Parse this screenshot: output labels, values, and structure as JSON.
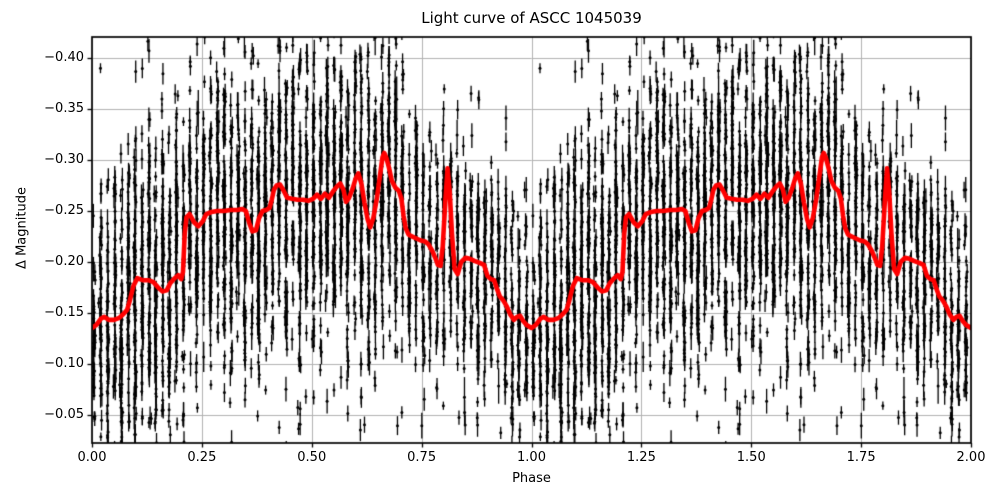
{
  "chart_data": {
    "type": "scatter",
    "title": "Light curve of ASCC 1045039",
    "xlabel": "Phase",
    "ylabel": "Δ Magnitude",
    "x_range": [
      0.0,
      2.0
    ],
    "y_top_value": -0.421,
    "y_bottom_value": -0.022,
    "y_axis_inverted": true,
    "grid": true,
    "legend": "none",
    "x_ticks": [
      0.0,
      0.25,
      0.5,
      0.75,
      1.0,
      1.25,
      1.5,
      1.75,
      2.0
    ],
    "x_tick_labels": [
      "0.00",
      "0.25",
      "0.50",
      "0.75",
      "1.00",
      "1.25",
      "1.50",
      "1.75",
      "2.00"
    ],
    "y_ticks": [
      -0.4,
      -0.35,
      -0.3,
      -0.25,
      -0.2,
      -0.15,
      -0.1,
      -0.05
    ],
    "y_tick_labels": [
      "−0.40",
      "−0.35",
      "−0.30",
      "−0.25",
      "−0.20",
      "−0.15",
      "−0.10",
      "−0.05"
    ],
    "colors": {
      "scatter": "#000000",
      "trend_line": "#ff0000",
      "grid": "#b2b2b2",
      "spine": "#000000",
      "background": "#ffffff",
      "text": "#000000"
    },
    "trend_line": {
      "description": "thick red smoothed phase-folded light curve; cycle 0-1 repeats identically over 1-2",
      "duplicated_over_second_cycle": true,
      "points": [
        [
          0.0,
          -0.135
        ],
        [
          0.01,
          -0.138
        ],
        [
          0.02,
          -0.144
        ],
        [
          0.028,
          -0.146
        ],
        [
          0.038,
          -0.143
        ],
        [
          0.05,
          -0.143
        ],
        [
          0.062,
          -0.145
        ],
        [
          0.072,
          -0.149
        ],
        [
          0.08,
          -0.153
        ],
        [
          0.086,
          -0.162
        ],
        [
          0.094,
          -0.176
        ],
        [
          0.103,
          -0.184
        ],
        [
          0.115,
          -0.182
        ],
        [
          0.128,
          -0.182
        ],
        [
          0.14,
          -0.18
        ],
        [
          0.15,
          -0.175
        ],
        [
          0.16,
          -0.171
        ],
        [
          0.17,
          -0.172
        ],
        [
          0.178,
          -0.179
        ],
        [
          0.186,
          -0.183
        ],
        [
          0.196,
          -0.187
        ],
        [
          0.203,
          -0.183
        ],
        [
          0.207,
          -0.19
        ],
        [
          0.211,
          -0.228
        ],
        [
          0.215,
          -0.244
        ],
        [
          0.222,
          -0.247
        ],
        [
          0.232,
          -0.239
        ],
        [
          0.242,
          -0.235
        ],
        [
          0.252,
          -0.24
        ],
        [
          0.26,
          -0.247
        ],
        [
          0.272,
          -0.249
        ],
        [
          0.285,
          -0.25
        ],
        [
          0.3,
          -0.25
        ],
        [
          0.315,
          -0.251
        ],
        [
          0.33,
          -0.251
        ],
        [
          0.342,
          -0.252
        ],
        [
          0.35,
          -0.25
        ],
        [
          0.358,
          -0.238
        ],
        [
          0.365,
          -0.23
        ],
        [
          0.373,
          -0.231
        ],
        [
          0.38,
          -0.243
        ],
        [
          0.388,
          -0.25
        ],
        [
          0.396,
          -0.251
        ],
        [
          0.404,
          -0.253
        ],
        [
          0.409,
          -0.261
        ],
        [
          0.414,
          -0.271
        ],
        [
          0.42,
          -0.275
        ],
        [
          0.428,
          -0.276
        ],
        [
          0.436,
          -0.27
        ],
        [
          0.444,
          -0.263
        ],
        [
          0.455,
          -0.262
        ],
        [
          0.468,
          -0.261
        ],
        [
          0.48,
          -0.261
        ],
        [
          0.492,
          -0.26
        ],
        [
          0.503,
          -0.262
        ],
        [
          0.512,
          -0.266
        ],
        [
          0.521,
          -0.262
        ],
        [
          0.53,
          -0.267
        ],
        [
          0.539,
          -0.263
        ],
        [
          0.548,
          -0.269
        ],
        [
          0.557,
          -0.274
        ],
        [
          0.565,
          -0.277
        ],
        [
          0.572,
          -0.271
        ],
        [
          0.578,
          -0.259
        ],
        [
          0.585,
          -0.263
        ],
        [
          0.593,
          -0.272
        ],
        [
          0.6,
          -0.282
        ],
        [
          0.606,
          -0.287
        ],
        [
          0.613,
          -0.277
        ],
        [
          0.62,
          -0.258
        ],
        [
          0.627,
          -0.242
        ],
        [
          0.633,
          -0.234
        ],
        [
          0.64,
          -0.243
        ],
        [
          0.648,
          -0.262
        ],
        [
          0.655,
          -0.284
        ],
        [
          0.661,
          -0.303
        ],
        [
          0.665,
          -0.307
        ],
        [
          0.67,
          -0.302
        ],
        [
          0.676,
          -0.292
        ],
        [
          0.682,
          -0.28
        ],
        [
          0.69,
          -0.273
        ],
        [
          0.698,
          -0.27
        ],
        [
          0.704,
          -0.262
        ],
        [
          0.709,
          -0.245
        ],
        [
          0.714,
          -0.233
        ],
        [
          0.72,
          -0.227
        ],
        [
          0.728,
          -0.225
        ],
        [
          0.738,
          -0.223
        ],
        [
          0.748,
          -0.221
        ],
        [
          0.758,
          -0.22
        ],
        [
          0.766,
          -0.217
        ],
        [
          0.774,
          -0.211
        ],
        [
          0.781,
          -0.204
        ],
        [
          0.787,
          -0.197
        ],
        [
          0.793,
          -0.196
        ],
        [
          0.798,
          -0.215
        ],
        [
          0.804,
          -0.26
        ],
        [
          0.809,
          -0.292
        ],
        [
          0.814,
          -0.268
        ],
        [
          0.819,
          -0.228
        ],
        [
          0.825,
          -0.193
        ],
        [
          0.832,
          -0.188
        ],
        [
          0.84,
          -0.2
        ],
        [
          0.85,
          -0.204
        ],
        [
          0.86,
          -0.203
        ],
        [
          0.87,
          -0.201
        ],
        [
          0.882,
          -0.199
        ],
        [
          0.892,
          -0.197
        ],
        [
          0.9,
          -0.186
        ],
        [
          0.908,
          -0.183
        ],
        [
          0.915,
          -0.182
        ],
        [
          0.921,
          -0.174
        ],
        [
          0.928,
          -0.166
        ],
        [
          0.936,
          -0.162
        ],
        [
          0.944,
          -0.156
        ],
        [
          0.952,
          -0.148
        ],
        [
          0.96,
          -0.143
        ],
        [
          0.967,
          -0.146
        ],
        [
          0.974,
          -0.147
        ],
        [
          0.981,
          -0.142
        ],
        [
          0.989,
          -0.138
        ],
        [
          1.0,
          -0.135
        ]
      ]
    },
    "scatter_spec": {
      "description": "black photometric points with small vertical error bars, clustered in narrow vertical phase columns; centers follow the trend curve; identical point set drawn at phase p and p+1",
      "seed": 20240813,
      "marker_radius_px": 1.5,
      "errorbar_halflength_mag_min": 0.004,
      "errorbar_halflength_mag_max": 0.013,
      "phase_jitter_sigma": 0.0013,
      "bands_format": [
        "phase",
        "center_offset_mag",
        "sigma_mag",
        "n_points"
      ],
      "bands": [
        [
          0.005,
          0.01,
          0.048,
          40
        ],
        [
          0.02,
          -0.018,
          0.062,
          52
        ],
        [
          0.036,
          0.026,
          0.072,
          58
        ],
        [
          0.052,
          -0.008,
          0.058,
          46
        ],
        [
          0.067,
          0.02,
          0.082,
          64
        ],
        [
          0.083,
          -0.028,
          0.078,
          68
        ],
        [
          0.098,
          0.002,
          0.088,
          72
        ],
        [
          0.114,
          0.016,
          0.07,
          56
        ],
        [
          0.13,
          -0.024,
          0.084,
          66
        ],
        [
          0.145,
          0.03,
          0.074,
          60
        ],
        [
          0.161,
          -0.012,
          0.088,
          70
        ],
        [
          0.176,
          0.006,
          0.078,
          58
        ],
        [
          0.192,
          -0.026,
          0.082,
          64
        ],
        [
          0.208,
          0.022,
          0.07,
          52
        ],
        [
          0.223,
          -0.004,
          0.06,
          46
        ],
        [
          0.239,
          0.014,
          0.074,
          56
        ],
        [
          0.254,
          -0.02,
          0.064,
          50
        ],
        [
          0.27,
          0.028,
          0.078,
          60
        ],
        [
          0.286,
          -0.01,
          0.07,
          54
        ],
        [
          0.301,
          0.004,
          0.084,
          64
        ],
        [
          0.317,
          0.024,
          0.074,
          56
        ],
        [
          0.332,
          -0.016,
          0.064,
          50
        ],
        [
          0.348,
          0.008,
          0.078,
          60
        ],
        [
          0.364,
          -0.024,
          0.07,
          54
        ],
        [
          0.379,
          0.018,
          0.088,
          68
        ],
        [
          0.395,
          -0.002,
          0.074,
          56
        ],
        [
          0.41,
          0.022,
          0.064,
          46
        ],
        [
          0.426,
          -0.014,
          0.078,
          58
        ],
        [
          0.442,
          0.012,
          0.084,
          64
        ],
        [
          0.457,
          -0.022,
          0.074,
          54
        ],
        [
          0.473,
          0.032,
          0.088,
          68
        ],
        [
          0.488,
          -0.006,
          0.078,
          58
        ],
        [
          0.504,
          0.0,
          0.084,
          64
        ],
        [
          0.52,
          0.02,
          0.074,
          56
        ],
        [
          0.535,
          -0.026,
          0.088,
          68
        ],
        [
          0.551,
          0.01,
          0.078,
          60
        ],
        [
          0.566,
          -0.016,
          0.07,
          52
        ],
        [
          0.582,
          0.024,
          0.084,
          62
        ],
        [
          0.598,
          -0.008,
          0.074,
          54
        ],
        [
          0.613,
          0.016,
          0.088,
          68
        ],
        [
          0.629,
          -0.022,
          0.078,
          58
        ],
        [
          0.644,
          0.004,
          0.084,
          62
        ],
        [
          0.66,
          0.028,
          0.074,
          54
        ],
        [
          0.676,
          -0.012,
          0.07,
          50
        ],
        [
          0.691,
          0.008,
          0.082,
          58
        ],
        [
          0.707,
          -0.018,
          0.072,
          48
        ],
        [
          0.722,
          0.014,
          0.062,
          42
        ],
        [
          0.738,
          -0.028,
          0.074,
          50
        ],
        [
          0.754,
          0.02,
          0.064,
          38
        ],
        [
          0.769,
          -0.002,
          0.056,
          34
        ],
        [
          0.785,
          0.016,
          0.06,
          36
        ],
        [
          0.8,
          -0.02,
          0.07,
          44
        ],
        [
          0.816,
          0.012,
          0.058,
          38
        ],
        [
          0.832,
          -0.024,
          0.052,
          34
        ],
        [
          0.847,
          0.02,
          0.066,
          42
        ],
        [
          0.863,
          -0.008,
          0.056,
          38
        ],
        [
          0.878,
          0.004,
          0.068,
          46
        ],
        [
          0.894,
          0.024,
          0.06,
          42
        ],
        [
          0.91,
          -0.014,
          0.054,
          38
        ],
        [
          0.925,
          0.008,
          0.05,
          36
        ],
        [
          0.941,
          -0.022,
          0.064,
          42
        ],
        [
          0.956,
          0.014,
          0.056,
          38
        ],
        [
          0.972,
          -0.004,
          0.05,
          36
        ],
        [
          0.988,
          0.01,
          0.056,
          40
        ]
      ],
      "outliers_format": [
        "phase",
        "mag",
        "errorbar_halflength_mag"
      ],
      "outliers": [
        [
          0.135,
          -0.046,
          0.006
        ],
        [
          0.3,
          -0.41,
          0.007
        ],
        [
          0.47,
          -0.036,
          0.006
        ],
        [
          0.62,
          -0.04,
          0.008
        ],
        [
          0.705,
          -0.052,
          0.006
        ],
        [
          0.835,
          -0.047,
          0.007
        ],
        [
          0.93,
          -0.032,
          0.006
        ]
      ]
    }
  }
}
